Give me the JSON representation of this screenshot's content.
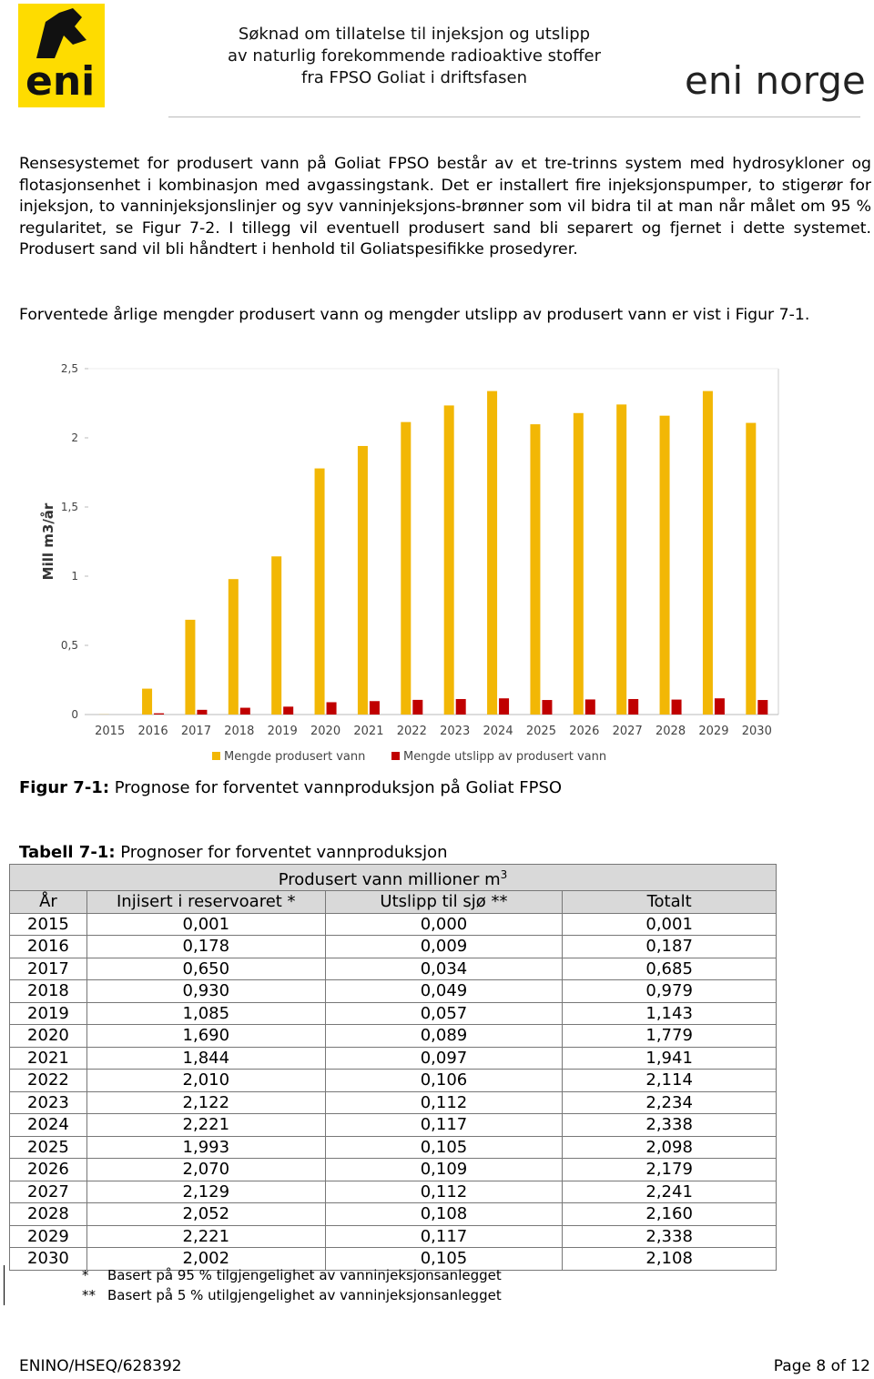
{
  "header": {
    "logo_text": "eni",
    "title_lines": [
      "Søknad om tillatelse til injeksjon og utslipp",
      "av naturlig forekommende radioaktive stoffer",
      "fra FPSO Goliat i driftsfasen"
    ],
    "brand": "eni norge"
  },
  "paragraphs": [
    "Rensesystemet for produsert vann på Goliat FPSO består av et tre-trinns system med hydrosykloner og flotasjonsenhet i kombinasjon med avgassingstank. Det er installert fire injeksjonspumper, to stigerør for injeksjon, to vanninjeksjonslinjer og syv vanninjeksjons-brønner som vil bidra til at man når målet om 95 % regularitet, se Figur 7-2. I tillegg vil eventuell produsert sand bli separert og fjernet i dette systemet. Produsert sand vil bli håndtert i henhold til Goliatspesifikke prosedyrer.",
    "Forventede årlige mengder produsert vann og mengder utslipp av produsert vann er vist i Figur 7-1."
  ],
  "chart_data": {
    "type": "bar",
    "y_label": "Mill m3/år",
    "categories": [
      "2015",
      "2016",
      "2017",
      "2018",
      "2019",
      "2020",
      "2021",
      "2022",
      "2023",
      "2024",
      "2025",
      "2026",
      "2027",
      "2028",
      "2029",
      "2030"
    ],
    "series": [
      {
        "name": "Mengde produsert vann",
        "color": "#f2b705",
        "values": [
          0.001,
          0.187,
          0.685,
          0.979,
          1.143,
          1.779,
          1.941,
          2.114,
          2.234,
          2.338,
          2.098,
          2.179,
          2.241,
          2.16,
          2.338,
          2.108
        ]
      },
      {
        "name": "Mengde utslipp av produsert vann",
        "color": "#c00000",
        "values": [
          0.0,
          0.009,
          0.034,
          0.049,
          0.057,
          0.089,
          0.097,
          0.106,
          0.112,
          0.117,
          0.105,
          0.109,
          0.112,
          0.108,
          0.117,
          0.105
        ]
      }
    ],
    "ylim": [
      0,
      2.5
    ],
    "yticks": [
      0,
      {
        "value": 0.5,
        "label": "0,5"
      },
      1,
      {
        "value": 1.5,
        "label": "1,5"
      },
      2,
      {
        "value": 2.5,
        "label": "2,5"
      }
    ]
  },
  "figure_caption": {
    "label": "Figur 7-1:",
    "text": "Prognose for forventet vannproduksjon på Goliat FPSO"
  },
  "table": {
    "caption_label": "Tabell 7-1:",
    "caption_text": "Prognoser for forventet vannproduksjon",
    "title": "Produsert vann millioner m",
    "title_sup": "3",
    "columns": [
      "År",
      "Injisert i reservoaret *",
      "Utslipp til sjø **",
      "Totalt"
    ],
    "rows": [
      [
        "2015",
        "0,001",
        "0,000",
        "0,001"
      ],
      [
        "2016",
        "0,178",
        "0,009",
        "0,187"
      ],
      [
        "2017",
        "0,650",
        "0,034",
        "0,685"
      ],
      [
        "2018",
        "0,930",
        "0,049",
        "0,979"
      ],
      [
        "2019",
        "1,085",
        "0,057",
        "1,143"
      ],
      [
        "2020",
        "1,690",
        "0,089",
        "1,779"
      ],
      [
        "2021",
        "1,844",
        "0,097",
        "1,941"
      ],
      [
        "2022",
        "2,010",
        "0,106",
        "2,114"
      ],
      [
        "2023",
        "2,122",
        "0,112",
        "2,234"
      ],
      [
        "2024",
        "2,221",
        "0,117",
        "2,338"
      ],
      [
        "2025",
        "1,993",
        "0,105",
        "2,098"
      ],
      [
        "2026",
        "2,070",
        "0,109",
        "2,179"
      ],
      [
        "2027",
        "2,129",
        "0,112",
        "2,241"
      ],
      [
        "2028",
        "2,052",
        "0,108",
        "2,160"
      ],
      [
        "2029",
        "2,221",
        "0,117",
        "2,338"
      ],
      [
        "2030",
        "2,002",
        "0,105",
        "2,108"
      ]
    ],
    "footnotes": [
      [
        "*",
        "Basert på 95 % tilgjengelighet av vanninjeksjonsanlegget"
      ],
      [
        "**",
        "Basert på 5 % utilgjengelighet av vanninjeksjonsanlegget"
      ]
    ]
  },
  "footer": {
    "left": "ENINO/HSEQ/628392",
    "right": "Page 8 of 12"
  }
}
